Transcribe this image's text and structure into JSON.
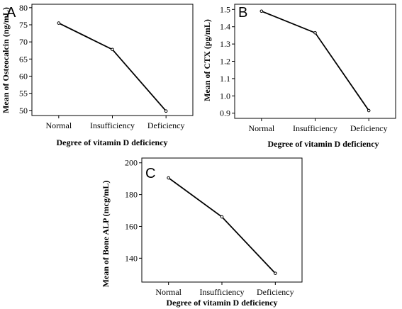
{
  "chart_data": [
    {
      "type": "line",
      "panel_label": "A",
      "categories": [
        "Normal",
        "Insufficiency",
        "Deficiency"
      ],
      "values": [
        75.5,
        67.8,
        49.8
      ],
      "title": "",
      "xlabel": "Degree of vitamin D deficiency",
      "ylabel": "Mean of Osteocalcin (ng/mL)",
      "ylim": [
        48.5,
        81
      ],
      "yticks": [
        50,
        55,
        60,
        65,
        70,
        75,
        80
      ],
      "ytick_labels": [
        "50",
        "55",
        "60",
        "65",
        "70",
        "75",
        "80"
      ],
      "grid": false
    },
    {
      "type": "line",
      "panel_label": "B",
      "categories": [
        "Normal",
        "Insufficiency",
        "Deficiency"
      ],
      "values": [
        1.49,
        1.365,
        0.915
      ],
      "title": "",
      "xlabel": "Degree of vitamin D deficiency",
      "ylabel": "Mean of CTX (pg/mL)",
      "ylim": [
        0.87,
        1.53
      ],
      "yticks": [
        0.9,
        1.0,
        1.1,
        1.2,
        1.3,
        1.4,
        1.5
      ],
      "ytick_labels": [
        "0.9",
        "1.0",
        "1.1",
        "1.2",
        "1.3",
        "1.4",
        "1.5"
      ],
      "grid": false
    },
    {
      "type": "line",
      "panel_label": "C",
      "categories": [
        "Normal",
        "Insufficiency",
        "Deficiency"
      ],
      "values": [
        190.5,
        166,
        130.5
      ],
      "title": "",
      "xlabel": "Degree of vitamin D deficiency",
      "ylabel": "Mean of Bone ALP (mcg/mL)",
      "ylim": [
        125,
        203
      ],
      "yticks": [
        140,
        160,
        180,
        200
      ],
      "ytick_labels": [
        "140",
        "160",
        "180",
        "200"
      ],
      "grid": false
    }
  ]
}
